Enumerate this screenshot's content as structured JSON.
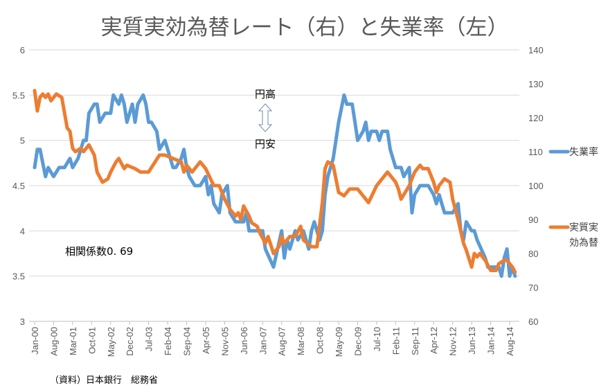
{
  "chart_data": {
    "type": "line",
    "title": "実質実効為替レート（右）と失業率（左）",
    "x_unit": "months since Jan-00",
    "x_tick_labels": [
      "Jan-00",
      "Aug-00",
      "Mar-01",
      "Oct-01",
      "May-02",
      "Dec-02",
      "Jul-03",
      "Feb-04",
      "Sep-04",
      "Apr-05",
      "Nov-05",
      "Jun-06",
      "Jan-07",
      "Aug-07",
      "Mar-08",
      "Oct-08",
      "May-09",
      "Dec-09",
      "Jul-10",
      "Feb-11",
      "Sep-11",
      "Apr-12",
      "Nov-12",
      "Jun-13",
      "Jan-14",
      "Aug-14"
    ],
    "x_tick_step_months": 7,
    "xlim": [
      0,
      177
    ],
    "left_axis": {
      "ylim": [
        3,
        6
      ],
      "ticks": [
        "3",
        "3.5",
        "4",
        "4.5",
        "5",
        "5.5",
        "6"
      ]
    },
    "right_axis": {
      "ylim": [
        60,
        140
      ],
      "ticks": [
        "60",
        "70",
        "80",
        "90",
        "100",
        "110",
        "120",
        "130",
        "140"
      ]
    },
    "grid": true,
    "legend_placement": "right",
    "series": [
      {
        "name": "失業率",
        "axis": "left",
        "color": "#5b9bd5",
        "points": [
          [
            0,
            4.7
          ],
          [
            1,
            4.9
          ],
          [
            2,
            4.9
          ],
          [
            4,
            4.6
          ],
          [
            5,
            4.7
          ],
          [
            7,
            4.6
          ],
          [
            9,
            4.7
          ],
          [
            11,
            4.7
          ],
          [
            13,
            4.8
          ],
          [
            14,
            4.7
          ],
          [
            16,
            4.8
          ],
          [
            18,
            5.0
          ],
          [
            19,
            5.0
          ],
          [
            20,
            5.3
          ],
          [
            22,
            5.4
          ],
          [
            23,
            5.4
          ],
          [
            24,
            5.2
          ],
          [
            26,
            5.3
          ],
          [
            28,
            5.3
          ],
          [
            29,
            5.5
          ],
          [
            31,
            5.4
          ],
          [
            32,
            5.5
          ],
          [
            33,
            5.4
          ],
          [
            34,
            5.2
          ],
          [
            36,
            5.4
          ],
          [
            37,
            5.2
          ],
          [
            38,
            5.4
          ],
          [
            40,
            5.5
          ],
          [
            41,
            5.4
          ],
          [
            42,
            5.2
          ],
          [
            43,
            5.2
          ],
          [
            45,
            5.1
          ],
          [
            46,
            4.9
          ],
          [
            48,
            5.0
          ],
          [
            50,
            4.8
          ],
          [
            51,
            4.7
          ],
          [
            52,
            4.7
          ],
          [
            54,
            4.8
          ],
          [
            55,
            4.9
          ],
          [
            56,
            4.7
          ],
          [
            57,
            4.6
          ],
          [
            59,
            4.5
          ],
          [
            61,
            4.5
          ],
          [
            63,
            4.6
          ],
          [
            64,
            4.4
          ],
          [
            65,
            4.5
          ],
          [
            66,
            4.3
          ],
          [
            68,
            4.2
          ],
          [
            69,
            4.4
          ],
          [
            71,
            4.5
          ],
          [
            72,
            4.2
          ],
          [
            74,
            4.1
          ],
          [
            77,
            4.1
          ],
          [
            78,
            4.2
          ],
          [
            79,
            4.0
          ],
          [
            82,
            4.0
          ],
          [
            84,
            4.0
          ],
          [
            85,
            3.8
          ],
          [
            88,
            3.6
          ],
          [
            91,
            4.0
          ],
          [
            92,
            3.7
          ],
          [
            93,
            3.9
          ],
          [
            94,
            3.8
          ],
          [
            96,
            4.0
          ],
          [
            97,
            3.9
          ],
          [
            99,
            4.0
          ],
          [
            101,
            3.8
          ],
          [
            102,
            4.0
          ],
          [
            103,
            4.1
          ],
          [
            105,
            3.9
          ],
          [
            106,
            4.0
          ],
          [
            107,
            4.4
          ],
          [
            108,
            4.6
          ],
          [
            110,
            4.8
          ],
          [
            111,
            5.0
          ],
          [
            112,
            5.2
          ],
          [
            114,
            5.5
          ],
          [
            115,
            5.4
          ],
          [
            117,
            5.4
          ],
          [
            118,
            5.2
          ],
          [
            119,
            5.0
          ],
          [
            121,
            5.1
          ],
          [
            122,
            5.2
          ],
          [
            123,
            5.0
          ],
          [
            124,
            5.1
          ],
          [
            126,
            5.1
          ],
          [
            127,
            5.0
          ],
          [
            128,
            5.1
          ],
          [
            130,
            5.1
          ],
          [
            131,
            4.9
          ],
          [
            133,
            4.7
          ],
          [
            135,
            4.7
          ],
          [
            136,
            4.6
          ],
          [
            138,
            4.7
          ],
          [
            139,
            4.2
          ],
          [
            140,
            4.4
          ],
          [
            142,
            4.5
          ],
          [
            144,
            4.5
          ],
          [
            145,
            4.5
          ],
          [
            147,
            4.4
          ],
          [
            148,
            4.3
          ],
          [
            149,
            4.4
          ],
          [
            151,
            4.2
          ],
          [
            153,
            4.2
          ],
          [
            154,
            4.2
          ],
          [
            156,
            4.3
          ],
          [
            157,
            4.0
          ],
          [
            158,
            3.9
          ],
          [
            159,
            4.1
          ],
          [
            161,
            4.0
          ],
          [
            162,
            4.0
          ],
          [
            163,
            3.9
          ],
          [
            166,
            3.7
          ],
          [
            167,
            3.6
          ],
          [
            168,
            3.6
          ],
          [
            171,
            3.6
          ],
          [
            172,
            3.5
          ],
          [
            173,
            3.7
          ],
          [
            174,
            3.8
          ],
          [
            175,
            3.5
          ],
          [
            176,
            3.6
          ],
          [
            177,
            3.5
          ]
        ]
      },
      {
        "name": "実質実効為替",
        "axis": "right",
        "color": "#ed7d31",
        "points": [
          [
            0,
            128
          ],
          [
            1,
            122
          ],
          [
            2,
            126
          ],
          [
            3,
            127
          ],
          [
            4,
            126
          ],
          [
            5,
            127
          ],
          [
            6,
            125
          ],
          [
            8,
            127
          ],
          [
            10,
            126
          ],
          [
            12,
            117
          ],
          [
            13,
            116
          ],
          [
            14,
            111
          ],
          [
            15,
            110
          ],
          [
            17,
            111
          ],
          [
            18,
            110
          ],
          [
            20,
            112
          ],
          [
            22,
            109
          ],
          [
            23,
            104
          ],
          [
            25,
            101
          ],
          [
            27,
            102
          ],
          [
            28,
            104
          ],
          [
            30,
            107
          ],
          [
            31,
            108
          ],
          [
            33,
            105
          ],
          [
            34,
            106
          ],
          [
            37,
            105
          ],
          [
            39,
            104
          ],
          [
            42,
            104
          ],
          [
            46,
            109
          ],
          [
            48,
            109
          ],
          [
            51,
            108
          ],
          [
            54,
            107
          ],
          [
            55,
            104
          ],
          [
            56,
            106
          ],
          [
            58,
            104
          ],
          [
            60,
            106
          ],
          [
            61,
            107
          ],
          [
            63,
            105
          ],
          [
            66,
            100
          ],
          [
            68,
            100
          ],
          [
            70,
            96
          ],
          [
            72,
            93
          ],
          [
            74,
            91
          ],
          [
            75,
            92
          ],
          [
            76,
            90
          ],
          [
            77,
            94
          ],
          [
            79,
            91
          ],
          [
            80,
            89
          ],
          [
            82,
            88
          ],
          [
            83,
            86
          ],
          [
            85,
            83
          ],
          [
            86,
            85
          ],
          [
            88,
            80
          ],
          [
            90,
            82
          ],
          [
            91,
            85
          ],
          [
            92,
            83
          ],
          [
            94,
            85
          ],
          [
            96,
            85
          ],
          [
            98,
            88
          ],
          [
            99,
            84
          ],
          [
            102,
            82
          ],
          [
            104,
            82
          ],
          [
            106,
            95
          ],
          [
            107,
            105
          ],
          [
            108,
            107
          ],
          [
            110,
            106
          ],
          [
            112,
            98
          ],
          [
            114,
            97
          ],
          [
            115,
            98
          ],
          [
            116,
            99
          ],
          [
            119,
            99
          ],
          [
            121,
            97
          ],
          [
            123,
            95
          ],
          [
            126,
            100
          ],
          [
            129,
            103
          ],
          [
            130,
            104
          ],
          [
            133,
            101
          ],
          [
            134,
            99
          ],
          [
            135,
            96
          ],
          [
            138,
            100
          ],
          [
            140,
            104
          ],
          [
            142,
            106
          ],
          [
            143,
            105
          ],
          [
            145,
            105
          ],
          [
            147,
            101
          ],
          [
            148,
            98
          ],
          [
            149,
            100
          ],
          [
            151,
            102
          ],
          [
            153,
            101
          ],
          [
            154,
            96
          ],
          [
            156,
            90
          ],
          [
            158,
            83
          ],
          [
            159,
            81
          ],
          [
            161,
            76
          ],
          [
            162,
            80
          ],
          [
            163,
            79
          ],
          [
            164,
            80
          ],
          [
            166,
            78
          ],
          [
            168,
            75
          ],
          [
            170,
            75
          ],
          [
            171,
            77
          ],
          [
            173,
            78
          ],
          [
            174,
            78
          ],
          [
            176,
            76
          ],
          [
            177,
            74.5
          ]
        ]
      }
    ],
    "legend": {
      "unemployment": "失業率",
      "reer_line1": "実質実",
      "reer_line2": "効為替"
    },
    "annotations": {
      "yen_strong": "円高",
      "yen_weak": "円安",
      "correlation": "相関係数0. 69"
    },
    "source": "（資料）日本銀行　総務省"
  }
}
